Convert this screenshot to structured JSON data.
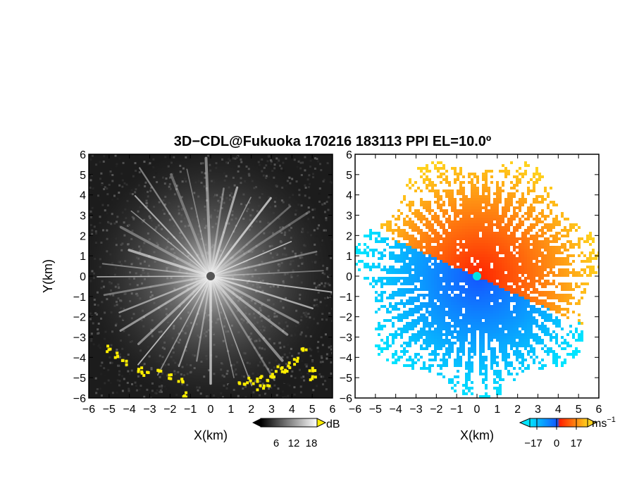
{
  "figure": {
    "title": "3D−CDL@Fukuoka 170216 183113 PPI EL=10.0º"
  },
  "chart_data": [
    {
      "type": "heatmap",
      "panel": "left",
      "xlabel": "X(km)",
      "ylabel": "Y(km)",
      "xlim": [
        -6,
        6
      ],
      "ylim": [
        -6,
        6
      ],
      "xticks": [
        "−6",
        "−5",
        "−4",
        "−3",
        "−2",
        "−1",
        "0",
        "1",
        "2",
        "3",
        "4",
        "5",
        "6"
      ],
      "yticks": [
        "6",
        "5",
        "4",
        "3",
        "2",
        "1",
        "0",
        "−1",
        "−2",
        "−3",
        "−4",
        "−5",
        "−6"
      ],
      "grid": false,
      "quantity": "SNR",
      "colormap": "grayscale with yellow saturation",
      "colors": {
        "background": "#1c1c1c",
        "high": "#ffffff",
        "saturated": "#ffee00"
      },
      "colorbar": {
        "unit": "dB",
        "ticks": [
          "6",
          "12",
          "18"
        ],
        "placement": "bottom-right"
      }
    },
    {
      "type": "heatmap",
      "panel": "right",
      "xlabel": "X(km)",
      "ylabel": "",
      "xlim": [
        -6,
        6
      ],
      "ylim": [
        -6,
        6
      ],
      "xticks": [
        "−6",
        "−5",
        "−4",
        "−3",
        "−2",
        "−1",
        "0",
        "1",
        "2",
        "3",
        "4",
        "5",
        "6"
      ],
      "yticks": [
        "6",
        "5",
        "4",
        "3",
        "2",
        "1",
        "0",
        "−1",
        "−2",
        "−3",
        "−4",
        "−5",
        "−6"
      ],
      "grid": false,
      "quantity": "Doppler velocity",
      "colormap": "diverging cyan-blue / red-orange-yellow",
      "colors": {
        "negative_far": "#00e5ff",
        "negative": "#1456ff",
        "positive": "#ff2200",
        "positive_far": "#ffd21e",
        "marker": "#00e5e5"
      },
      "colorbar": {
        "unit": "ms",
        "unit_exponent": "−1",
        "ticks": [
          "−17",
          "0",
          "17"
        ],
        "placement": "bottom-right"
      }
    }
  ]
}
